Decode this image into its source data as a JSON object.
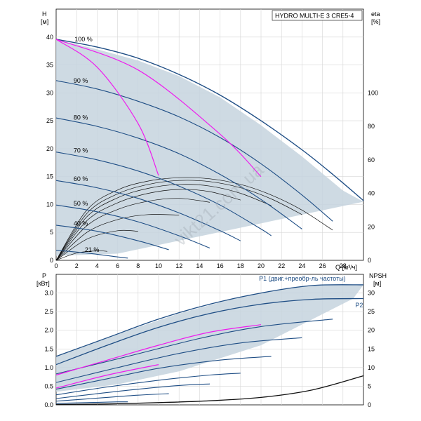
{
  "chart_data": [
    {
      "type": "line",
      "title": "HYDRO MULTI-E 3 CRE5-4",
      "ylabel": "H",
      "yunit": "[м]",
      "ylabel_right": "eta",
      "yunit_right": "[%]",
      "xlabel": "Q [м³/ч]",
      "xlim": [
        0,
        30
      ],
      "ylim": [
        0,
        45
      ],
      "ylim_right": [
        0,
        150
      ],
      "x_ticks": [
        "0",
        "2",
        "4",
        "6",
        "8",
        "10",
        "12",
        "14",
        "16",
        "18",
        "20",
        "22",
        "24",
        "26",
        "28"
      ],
      "y_ticks": [
        "0",
        "5",
        "10",
        "15",
        "20",
        "25",
        "30",
        "35",
        "40"
      ],
      "y_ticks_right": [
        "0",
        "20",
        "40",
        "60",
        "80",
        "100"
      ],
      "grid": true,
      "watermark": "vikt21.com.ua",
      "colors": {
        "curve": "#1f4e85",
        "magenta": "#ee1cee",
        "shade": "#c6d3de",
        "eff": "#111111"
      },
      "speed_labels": [
        {
          "text": "100 %",
          "x": 1.8,
          "y": 39.2
        },
        {
          "text": "90 %",
          "x": 1.7,
          "y": 31.8
        },
        {
          "text": "80 %",
          "x": 1.7,
          "y": 25.2
        },
        {
          "text": "70 %",
          "x": 1.7,
          "y": 19.3
        },
        {
          "text": "60 %",
          "x": 1.7,
          "y": 14.2
        },
        {
          "text": "50 %",
          "x": 1.7,
          "y": 9.8
        },
        {
          "text": "40 %",
          "x": 1.7,
          "y": 6.2
        },
        {
          "text": "21 %",
          "x": 2.8,
          "y": 1.5
        }
      ],
      "envelope": [
        [
          0,
          39.6
        ],
        [
          4,
          37.8
        ],
        [
          8,
          35.8
        ],
        [
          12,
          33
        ],
        [
          16,
          29.2
        ],
        [
          20,
          24.2
        ],
        [
          24,
          18.6
        ],
        [
          28,
          12.5
        ],
        [
          30,
          10.5
        ],
        [
          6,
          1.2
        ],
        [
          3,
          1.0
        ],
        [
          0,
          0.8
        ]
      ],
      "series": [
        {
          "name": "100 %",
          "x": [
            0,
            4,
            8,
            12,
            16,
            20,
            24,
            27,
            30
          ],
          "y": [
            39.6,
            38.2,
            36.2,
            33.3,
            29.6,
            25.0,
            19.8,
            15.4,
            10.7
          ]
        },
        {
          "name": "90 %",
          "x": [
            0,
            4,
            8,
            12,
            16,
            20,
            24,
            27
          ],
          "y": [
            32.2,
            30.7,
            28.5,
            25.7,
            22.0,
            17.3,
            11.7,
            7.0
          ]
        },
        {
          "name": "80 %",
          "x": [
            0,
            4,
            8,
            12,
            16,
            20,
            24
          ],
          "y": [
            25.5,
            24.0,
            21.9,
            19.1,
            15.4,
            10.9,
            5.6
          ]
        },
        {
          "name": "70 %",
          "x": [
            0,
            4,
            8,
            12,
            16,
            20,
            21
          ],
          "y": [
            19.4,
            18.0,
            16.0,
            13.3,
            9.9,
            5.6,
            4.4
          ]
        },
        {
          "name": "60 %",
          "x": [
            0,
            4,
            8,
            12,
            16,
            18
          ],
          "y": [
            14.3,
            13.0,
            11.1,
            8.5,
            5.3,
            3.5
          ]
        },
        {
          "name": "50 %",
          "x": [
            0,
            4,
            8,
            12,
            15
          ],
          "y": [
            9.9,
            8.7,
            6.9,
            4.4,
            2.2
          ]
        },
        {
          "name": "40 %",
          "x": [
            0,
            4,
            8,
            11
          ],
          "y": [
            6.3,
            5.2,
            3.5,
            1.9
          ]
        },
        {
          "name": "21 %",
          "x": [
            0,
            3,
            6,
            7
          ],
          "y": [
            1.8,
            1.3,
            0.6,
            0.4
          ]
        }
      ],
      "system_curves": [
        {
          "x": [
            0,
            4,
            8,
            10
          ],
          "y": [
            39.6,
            34.6,
            24.5,
            15.2
          ]
        },
        {
          "x": [
            0,
            8,
            16,
            20
          ],
          "y": [
            39.6,
            34.1,
            22.6,
            15.0
          ]
        }
      ],
      "efficiency_curves": [
        {
          "x": [
            0,
            3,
            6,
            9,
            12,
            15,
            18,
            21,
            24,
            27
          ],
          "y": [
            0,
            9.0,
            12.6,
            14.2,
            14.8,
            14.6,
            13.6,
            11.7,
            9.0,
            5.4
          ]
        },
        {
          "x": [
            0,
            3,
            6,
            9,
            12,
            15,
            18,
            21,
            24
          ],
          "y": [
            0,
            8.4,
            11.9,
            13.6,
            14.3,
            14.1,
            13.0,
            11.0,
            8.2
          ]
        },
        {
          "x": [
            0,
            3,
            6,
            9,
            12,
            15,
            18,
            21
          ],
          "y": [
            0,
            7.8,
            11.2,
            12.9,
            13.6,
            13.3,
            12.0,
            9.8
          ]
        },
        {
          "x": [
            0,
            3,
            6,
            9,
            12,
            15,
            18
          ],
          "y": [
            0,
            7.1,
            10.3,
            12.0,
            12.7,
            12.3,
            10.8
          ]
        },
        {
          "x": [
            0,
            3,
            6,
            9,
            12,
            15
          ],
          "y": [
            0,
            6.2,
            9.1,
            10.6,
            11.1,
            10.4
          ]
        },
        {
          "x": [
            0,
            3,
            6,
            9,
            12
          ],
          "y": [
            0,
            5.0,
            7.3,
            8.2,
            8.1
          ]
        },
        {
          "x": [
            0,
            3,
            6,
            8
          ],
          "y": [
            0,
            3.8,
            5.3,
            5.2
          ]
        },
        {
          "x": [
            0,
            2,
            4,
            5
          ],
          "y": [
            0,
            1.3,
            1.7,
            1.6
          ]
        }
      ]
    },
    {
      "type": "line",
      "ylabel": "P",
      "yunit": "[кВт]",
      "ylabel_right": "NPSH",
      "yunit_right": "[м]",
      "xlim": [
        0,
        30
      ],
      "ylim": [
        0,
        3.5
      ],
      "ylim_right": [
        0,
        35
      ],
      "y_ticks": [
        "0.0",
        "0.5",
        "1.0",
        "1.5",
        "2.0",
        "2.5",
        "3.0"
      ],
      "y_ticks_right": [
        "0",
        "5",
        "10",
        "15",
        "20",
        "25",
        "30"
      ],
      "grid": true,
      "labels": [
        {
          "text": "P1 (двиг.+преобр-ль частоты)",
          "x": 19.8,
          "y": 3.33
        },
        {
          "text": "P2",
          "x": 29.2,
          "y": 2.62
        }
      ],
      "envelope": [
        [
          0,
          1.3
        ],
        [
          6,
          1.9
        ],
        [
          12,
          2.45
        ],
        [
          18,
          2.9
        ],
        [
          24,
          3.18
        ],
        [
          30,
          3.22
        ],
        [
          29,
          2.85
        ],
        [
          20,
          1.6
        ],
        [
          12,
          0.9
        ],
        [
          6,
          0.55
        ],
        [
          0,
          0.35
        ]
      ],
      "series": [
        {
          "name": "P1",
          "x": [
            0,
            5,
            10,
            15,
            20,
            25,
            30
          ],
          "y": [
            1.3,
            1.8,
            2.3,
            2.7,
            3.0,
            3.2,
            3.22
          ]
        },
        {
          "name": "P2",
          "x": [
            0,
            5,
            10,
            15,
            20,
            25,
            30
          ],
          "y": [
            1.08,
            1.6,
            2.08,
            2.45,
            2.7,
            2.83,
            2.85
          ]
        },
        {
          "name": "90 %",
          "x": [
            0,
            7,
            14,
            20,
            27
          ],
          "y": [
            0.83,
            1.3,
            1.78,
            2.1,
            2.3
          ]
        },
        {
          "name": "80 %",
          "x": [
            0,
            6,
            12,
            18,
            24
          ],
          "y": [
            0.6,
            1.0,
            1.38,
            1.66,
            1.8
          ]
        },
        {
          "name": "70 %",
          "x": [
            0,
            5,
            10,
            16,
            21
          ],
          "y": [
            0.42,
            0.7,
            0.98,
            1.2,
            1.3
          ]
        },
        {
          "name": "60 %",
          "x": [
            0,
            5,
            10,
            15,
            18
          ],
          "y": [
            0.27,
            0.48,
            0.66,
            0.8,
            0.85
          ]
        },
        {
          "name": "50 %",
          "x": [
            0,
            4,
            8,
            12,
            15
          ],
          "y": [
            0.17,
            0.3,
            0.42,
            0.52,
            0.56
          ]
        },
        {
          "name": "40 %",
          "x": [
            0,
            4,
            8,
            11
          ],
          "y": [
            0.1,
            0.18,
            0.26,
            0.3
          ]
        },
        {
          "name": "21 %",
          "x": [
            0,
            3,
            6,
            7
          ],
          "y": [
            0.04,
            0.06,
            0.08,
            0.08
          ]
        }
      ],
      "magenta_curves": [
        {
          "x": [
            0,
            5,
            10,
            15,
            20
          ],
          "y": [
            0.8,
            1.2,
            1.6,
            1.95,
            2.15
          ]
        },
        {
          "x": [
            0,
            5,
            10
          ],
          "y": [
            0.45,
            0.8,
            1.08
          ]
        }
      ],
      "npsh_curve": {
        "x": [
          0,
          5,
          10,
          15,
          20,
          25,
          30
        ],
        "y": [
          0.1,
          0.25,
          0.6,
          1.1,
          2.0,
          4.0,
          7.8
        ]
      }
    }
  ]
}
